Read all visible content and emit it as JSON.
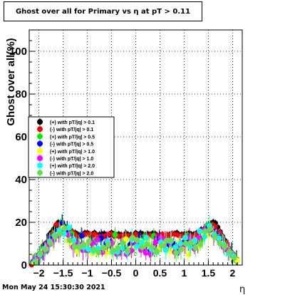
{
  "title": "Ghost over all for Primary vs   η at pT > 0.11",
  "timestamp": "Mon May 24 15:30:30 2021",
  "chart_data": {
    "type": "scatter",
    "xlabel": "η",
    "ylabel": "Ghost over all(%)",
    "xlim": [
      -2.2,
      2.2
    ],
    "ylim": [
      0,
      110
    ],
    "x_ticks": [
      -2,
      -1.5,
      -1,
      -0.5,
      0,
      0.5,
      1,
      1.5,
      2
    ],
    "x_tick_labels": [
      "−2",
      "−1.5",
      "−1",
      "−0.5",
      "0",
      "0.5",
      "1",
      "1.5",
      "2"
    ],
    "y_ticks": [
      0,
      20,
      40,
      60,
      80,
      100
    ],
    "grid": true,
    "legend_position": "left-middle",
    "eta_min": -2.2,
    "eta_max": 2.2,
    "series": [
      {
        "name": "(+) with pT/|q| > 0.1",
        "color": "#000000",
        "plateau": 14.5,
        "edge": 1.62,
        "peak": 20
      },
      {
        "name": "(-) with pT/|q| > 0.1",
        "color": "#ff0000",
        "plateau": 14.0,
        "edge": 1.62,
        "peak": 19
      },
      {
        "name": "(+) with pT/|q| > 0.5",
        "color": "#00ee00",
        "plateau": 10.5,
        "edge": 1.55,
        "peak": 18
      },
      {
        "name": "(-) with pT/|q| > 0.5",
        "color": "#0000ff",
        "plateau": 10.0,
        "edge": 1.55,
        "peak": 18
      },
      {
        "name": "(+) with pT/|q| > 1.0",
        "color": "#ffff00",
        "plateau": 9.0,
        "edge": 1.5,
        "peak": 17
      },
      {
        "name": "(-) with pT/|q| > 1.0",
        "color": "#ff00ff",
        "plateau": 9.0,
        "edge": 1.5,
        "peak": 17
      },
      {
        "name": "(+) with pT/|q| > 2.0",
        "color": "#00ffff",
        "plateau": 9.5,
        "edge": 1.5,
        "peak": 18
      },
      {
        "name": "(-) with pT/|q| > 2.0",
        "color": "#66dd55",
        "plateau": 9.0,
        "edge": 1.5,
        "peak": 17
      }
    ]
  }
}
